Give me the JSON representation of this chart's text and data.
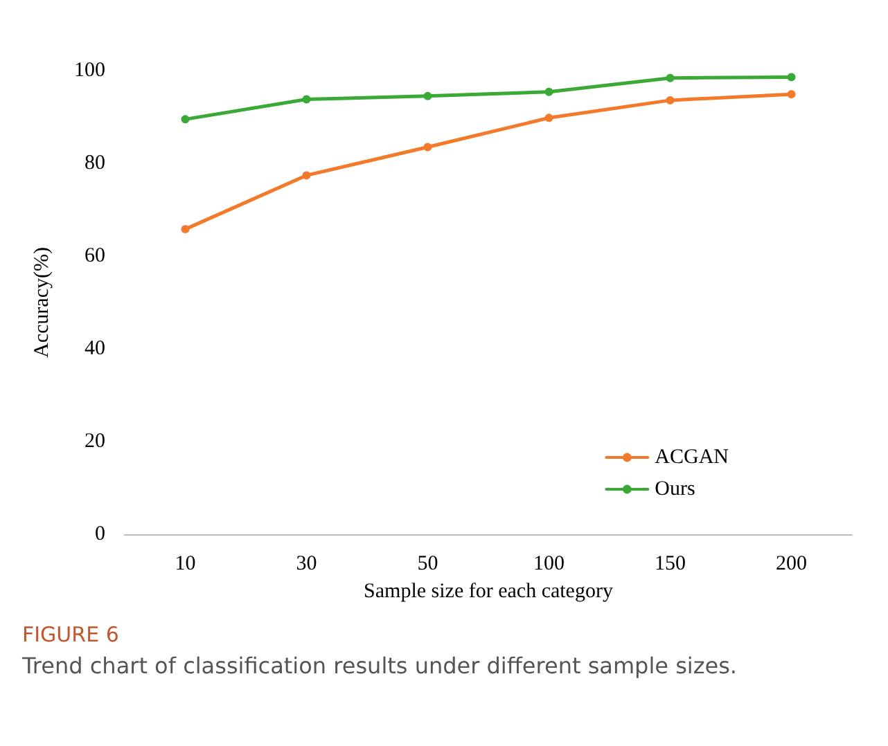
{
  "chart_data": {
    "type": "line",
    "categories": [
      "10",
      "30",
      "50",
      "100",
      "150",
      "200"
    ],
    "series": [
      {
        "name": "ACGAN",
        "color": "#f47a2b",
        "values": [
          65.8,
          77.4,
          83.5,
          89.8,
          93.6,
          94.9
        ]
      },
      {
        "name": "Ours",
        "color": "#3aa935",
        "values": [
          89.5,
          93.8,
          94.5,
          95.4,
          98.4,
          98.6
        ]
      }
    ],
    "xlabel": "Sample size for each category",
    "ylabel": "Accuracy(%)",
    "ylim": [
      0,
      100
    ],
    "yticks": [
      0,
      20,
      40,
      60,
      80,
      100
    ],
    "grid": false,
    "legend": "bottom right",
    "marker": "circle",
    "line_style": "solid",
    "annotations": [
      "FIGURE 6",
      "Trend chart of classification results under different sample sizes."
    ]
  }
}
